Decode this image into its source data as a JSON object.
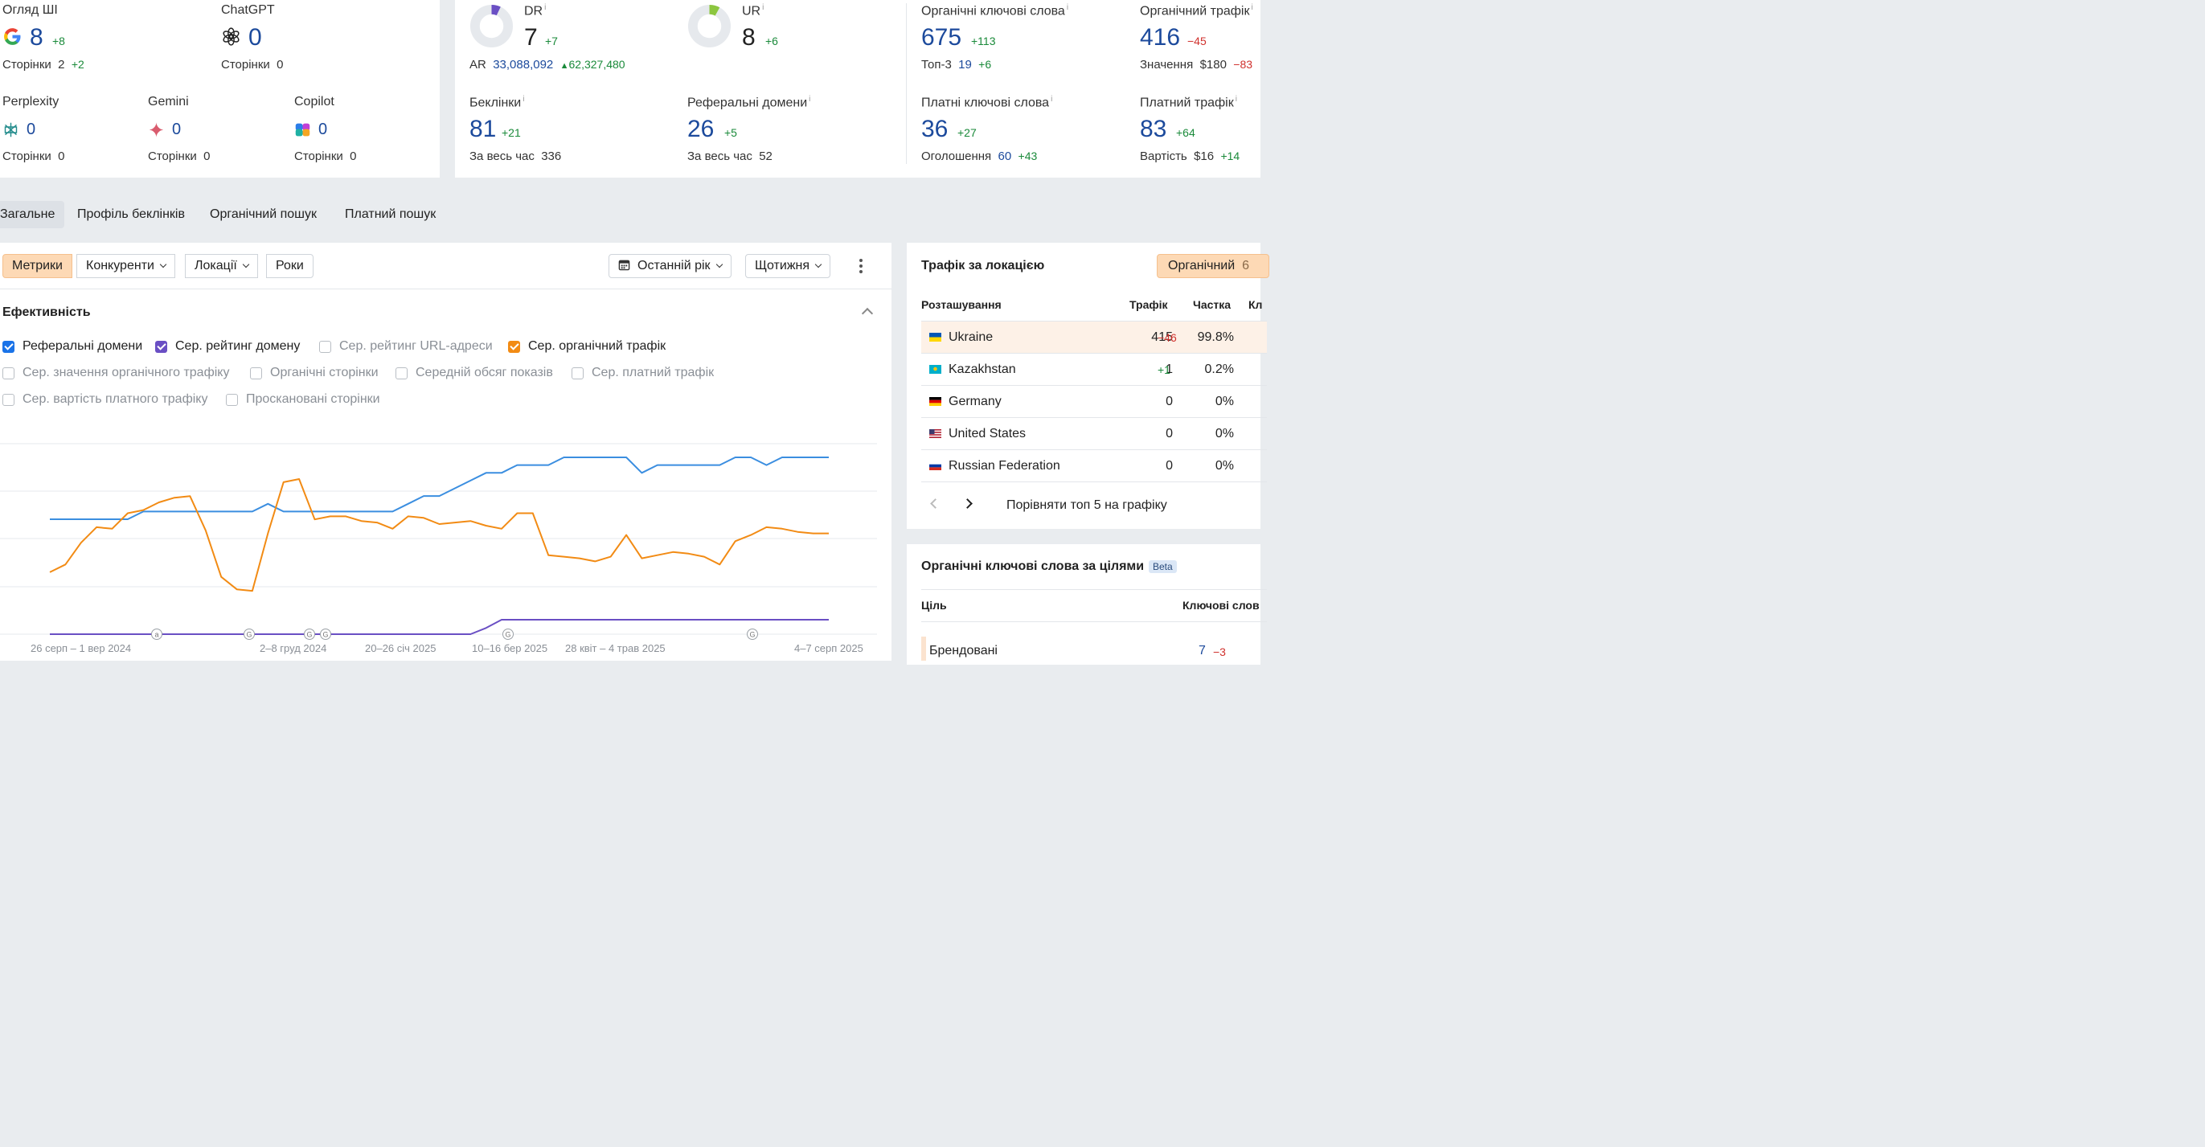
{
  "ai": {
    "overview": {
      "label": "Огляд ШІ",
      "value": "8",
      "delta": "+8",
      "pages_label": "Сторінки",
      "pages": "2",
      "pages_delta": "+2"
    },
    "chatgpt": {
      "label": "ChatGPT",
      "value": "0",
      "pages_label": "Сторінки",
      "pages": "0"
    },
    "perplexity": {
      "label": "Perplexity",
      "value": "0",
      "pages_label": "Сторінки",
      "pages": "0"
    },
    "gemini": {
      "label": "Gemini",
      "value": "0",
      "pages_label": "Сторінки",
      "pages": "0"
    },
    "copilot": {
      "label": "Copilot",
      "value": "0",
      "pages_label": "Сторінки",
      "pages": "0"
    }
  },
  "authority": {
    "dr": {
      "label": "DR",
      "value": "7",
      "delta": "+7",
      "fill": 0.07,
      "color": "#6a4fc4"
    },
    "ar": {
      "label": "AR",
      "value": "33,088,092",
      "delta": "62,327,480"
    },
    "ur": {
      "label": "UR",
      "value": "8",
      "delta": "+6",
      "fill": 0.08,
      "color": "#8cc63f"
    },
    "backlinks": {
      "label": "Беклінки",
      "value": "81",
      "delta": "+21",
      "all_time_label": "За весь час",
      "all_time": "336"
    },
    "ref_domains": {
      "label": "Реферальні домени",
      "value": "26",
      "delta": "+5",
      "all_time_label": "За весь час",
      "all_time": "52"
    }
  },
  "search": {
    "organic_kw": {
      "label": "Органічні ключові слова",
      "value": "675",
      "delta": "+113",
      "top3_label": "Топ-3",
      "top3": "19",
      "top3_delta": "+6"
    },
    "organic_traffic": {
      "label": "Органічний трафік",
      "value": "416",
      "delta": "−45",
      "value_label": "Значення",
      "money": "$180",
      "money_delta": "−83"
    },
    "paid_kw": {
      "label": "Платні ключові слова",
      "value": "36",
      "delta": "+27",
      "ads_label": "Оголошення",
      "ads": "60",
      "ads_delta": "+43"
    },
    "paid_traffic": {
      "label": "Платний трафік",
      "value": "83",
      "delta": "+64",
      "cost_label": "Вартість",
      "cost": "$16",
      "cost_delta": "+14"
    }
  },
  "tabs": [
    "Загальне",
    "Профіль беклінків",
    "Органічний пошук",
    "Платний пошук"
  ],
  "toolbar": {
    "metrics": "Метрики",
    "competitors": "Конкуренти",
    "locations": "Локації",
    "years": "Роки",
    "period": "Останній рік",
    "interval": "Щотижня"
  },
  "performance": {
    "title": "Ефективність",
    "checkboxes": [
      {
        "label": "Реферальні домени",
        "checked": true,
        "color": "#1a73e8"
      },
      {
        "label": "Сер. рейтинг домену",
        "checked": true,
        "color": "#6a4fc4"
      },
      {
        "label": "Сер. рейтинг URL-адреси",
        "checked": false,
        "color": ""
      },
      {
        "label": "Сер. органічний трафік",
        "checked": true,
        "color": "#f28b14"
      },
      {
        "label": "Сер. значення органічного трафіку",
        "checked": false,
        "color": ""
      },
      {
        "label": "Органічні сторінки",
        "checked": false,
        "color": ""
      },
      {
        "label": "Середній обсяг показів",
        "checked": false,
        "color": ""
      },
      {
        "label": "Сер. платний трафік",
        "checked": false,
        "color": ""
      },
      {
        "label": "Сер. вартість платного трафіку",
        "checked": false,
        "color": ""
      },
      {
        "label": "Проскановані сторінки",
        "checked": false,
        "color": ""
      }
    ]
  },
  "chart_data": {
    "type": "line",
    "x_labels": [
      "26 серп – 1 вер 2024",
      "2–8 груд 2024",
      "20–26 січ 2025",
      "10–16 бер 2025",
      "28 квіт – 4 трав 2025",
      "4–7 серп 2025"
    ],
    "annotations": [
      "a",
      "G",
      "G",
      "G",
      "G",
      "G"
    ],
    "series": [
      {
        "name": "Реферальні домени",
        "color": "#3b8ee0",
        "values": [
          22,
          22,
          22,
          22,
          22,
          22,
          23,
          23,
          23,
          23,
          23,
          23,
          23,
          23,
          24,
          23,
          23,
          23,
          23,
          23,
          23,
          23,
          23,
          24,
          25,
          25,
          26,
          27,
          28,
          28,
          29,
          29,
          29,
          30,
          30,
          30,
          30,
          30,
          28,
          29,
          29,
          29,
          29,
          29,
          30,
          30,
          29,
          30,
          30,
          30,
          30
        ]
      },
      {
        "name": "Сер. органічний трафік",
        "color": "#f28b14",
        "values": [
          140,
          190,
          330,
          430,
          420,
          520,
          540,
          590,
          620,
          630,
          410,
          110,
          30,
          20,
          390,
          720,
          740,
          480,
          500,
          500,
          470,
          460,
          420,
          500,
          490,
          450,
          460,
          470,
          440,
          420,
          520,
          520,
          250,
          240,
          230,
          210,
          240,
          380,
          230,
          250,
          270,
          260,
          240,
          190,
          340,
          380,
          430,
          420,
          400,
          390,
          390
        ]
      },
      {
        "name": "Сер. рейтинг домену",
        "color": "#6a4fc4",
        "values": [
          0,
          0,
          0,
          0,
          0,
          0,
          0,
          0,
          0,
          0,
          0,
          0,
          0,
          0,
          0,
          0,
          0,
          0,
          0,
          0,
          0,
          0,
          0,
          0,
          0,
          0,
          0,
          0,
          3,
          7,
          7,
          7,
          7,
          7,
          7,
          7,
          7,
          7,
          7,
          7,
          7,
          7,
          7,
          7,
          7,
          7,
          7,
          7,
          7,
          7,
          7
        ]
      }
    ]
  },
  "location": {
    "title": "Трафік за локацією",
    "filter": "Органічний",
    "filter_count": "6",
    "headers": {
      "location": "Розташування",
      "traffic": "Трафік",
      "share": "Частка",
      "extra": "Кл"
    },
    "rows": [
      {
        "country": "Ukraine",
        "traffic": "415",
        "delta": "−46",
        "share": "99.8%"
      },
      {
        "country": "Kazakhstan",
        "traffic": "1",
        "delta": "+1",
        "share": "0.2%"
      },
      {
        "country": "Germany",
        "traffic": "0",
        "delta": "",
        "share": "0%"
      },
      {
        "country": "United States",
        "traffic": "0",
        "delta": "",
        "share": "0%"
      },
      {
        "country": "Russian Federation",
        "traffic": "0",
        "delta": "",
        "share": "0%"
      }
    ],
    "compare": "Порівняти топ 5 на графіку"
  },
  "intent": {
    "title": "Органічні ключові слова за цілями",
    "badge": "Beta",
    "headers": {
      "goal": "Ціль",
      "keywords": "Ключові слов"
    },
    "rows": [
      {
        "goal": "Брендовані",
        "value": "7",
        "delta": "−3"
      }
    ]
  }
}
